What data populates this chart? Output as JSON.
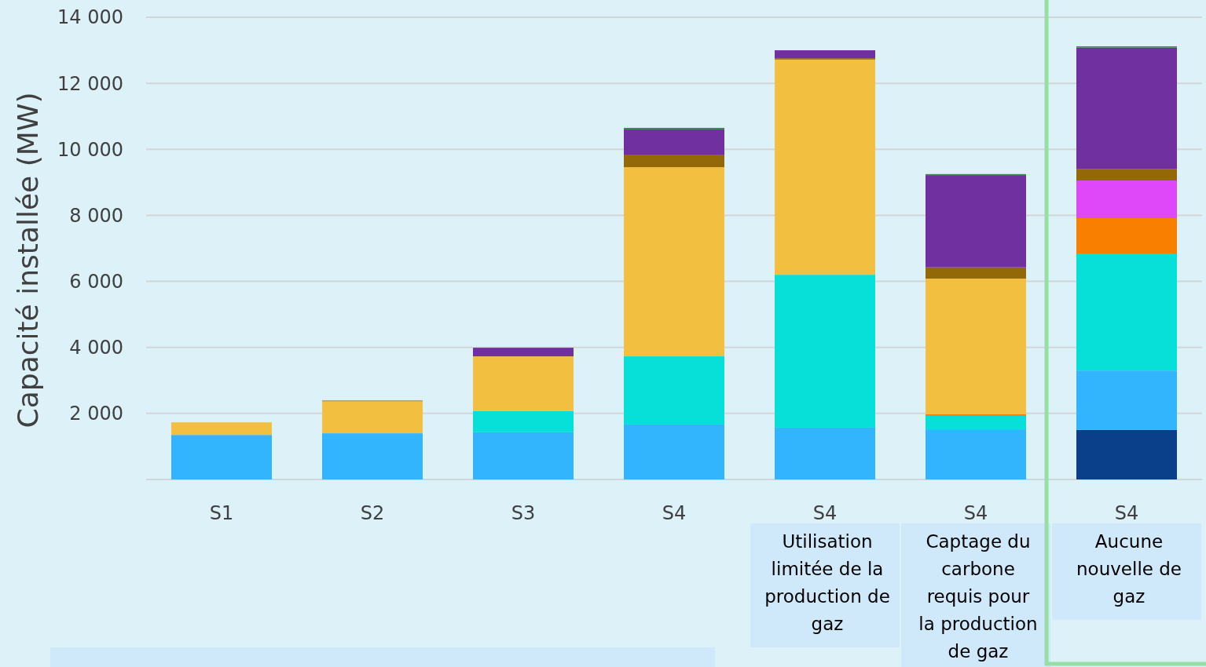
{
  "chart_data": {
    "type": "bar",
    "stacked": true,
    "ylabel": "Capacité installée (MW)",
    "categories": [
      "S1",
      "S2",
      "S3",
      "S4",
      "S4",
      "S4",
      "S4"
    ],
    "series": [
      {
        "color": "#0a3f8a",
        "values": [
          0,
          0,
          0,
          0,
          0,
          0,
          1500
        ]
      },
      {
        "color": "#33b5fd",
        "values": [
          1350,
          1400,
          1430,
          1665,
          1570,
          1520,
          1800
        ]
      },
      {
        "color": "#06e0d9",
        "values": [
          0,
          0,
          640,
          2065,
          4630,
          405,
          3545
        ]
      },
      {
        "color": "#f97f00",
        "values": [
          0,
          0,
          0,
          0,
          0,
          55,
          1070
        ]
      },
      {
        "color": "#df48f8",
        "values": [
          0,
          0,
          0,
          0,
          0,
          0,
          1140
        ]
      },
      {
        "color": "#f3bf41",
        "values": [
          380,
          970,
          1660,
          5730,
          6520,
          4105,
          0
        ]
      },
      {
        "color": "#926808",
        "values": [
          0,
          20,
          0,
          380,
          40,
          340,
          355
        ]
      },
      {
        "color": "#70309f",
        "values": [
          0,
          0,
          260,
          760,
          240,
          2795,
          3670
        ]
      },
      {
        "color": "#3a8a50",
        "values": [
          0,
          0,
          0,
          50,
          0,
          30,
          40
        ]
      }
    ],
    "ylim": [
      0,
      14000
    ],
    "yticks": [
      {
        "value": 0,
        "label": null
      },
      {
        "value": 2000,
        "label": "2 000"
      },
      {
        "value": 4000,
        "label": "4 000"
      },
      {
        "value": 6000,
        "label": "6 000"
      },
      {
        "value": 8000,
        "label": "8 000"
      },
      {
        "value": 10000,
        "label": "10 000"
      },
      {
        "value": 12000,
        "label": "12 000"
      },
      {
        "value": 14000,
        "label": "14 000"
      }
    ],
    "grid": "y",
    "annotations": [
      "Utilisation limitée de la production de gaz",
      "Captage du carbone requis pour la production de gaz",
      "Aucune nouvelle de gaz"
    ]
  }
}
